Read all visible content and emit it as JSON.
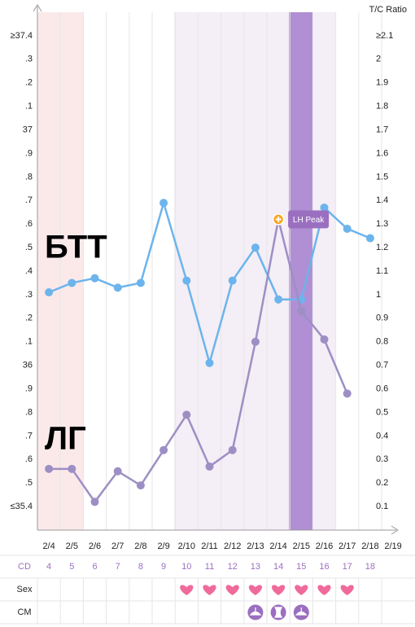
{
  "chart_data": {
    "type": "line",
    "categories": [
      "2/4",
      "2/5",
      "2/6",
      "2/7",
      "2/8",
      "2/9",
      "2/10",
      "2/11",
      "2/12",
      "2/13",
      "2/14",
      "2/15",
      "2/16",
      "2/17",
      "2/18",
      "2/19"
    ],
    "series": [
      {
        "name": "БТТ",
        "color": "#6cb4ec",
        "values": [
          36.31,
          36.35,
          36.37,
          36.33,
          36.35,
          36.69,
          36.36,
          36.01,
          36.36,
          36.5,
          36.28,
          36.28,
          36.67,
          36.58,
          36.54,
          null
        ]
      },
      {
        "name": "ЛГ",
        "color": "#9d8fc4",
        "axis": "y2",
        "values": [
          0.26,
          0.26,
          0.12,
          0.25,
          0.19,
          0.34,
          0.49,
          0.27,
          0.34,
          0.8,
          1.32,
          0.93,
          0.81,
          0.58,
          null,
          null
        ]
      }
    ],
    "ylim": [
      35.3,
      37.5
    ],
    "yticks": [
      {
        "value": 37.4,
        "label": "≥37.4"
      },
      {
        "value": 37.3,
        "label": ".3"
      },
      {
        "value": 37.2,
        "label": ".2"
      },
      {
        "value": 37.1,
        "label": ".1"
      },
      37,
      {
        "value": 36.9,
        "label": ".9"
      },
      {
        "value": 36.8,
        "label": ".8"
      },
      {
        "value": 36.7,
        "label": ".7"
      },
      {
        "value": 36.6,
        "label": ".6"
      },
      {
        "value": 36.5,
        "label": ".5"
      },
      {
        "value": 36.4,
        "label": ".4"
      },
      {
        "value": 36.3,
        "label": ".3"
      },
      {
        "value": 36.2,
        "label": ".2"
      },
      {
        "value": 36.1,
        "label": ".1"
      },
      36,
      {
        "value": 35.9,
        "label": ".9"
      },
      {
        "value": 35.8,
        "label": ".8"
      },
      {
        "value": 35.7,
        "label": ".7"
      },
      {
        "value": 35.6,
        "label": ".6"
      },
      {
        "value": 35.5,
        "label": ".5"
      },
      {
        "value": 35.4,
        "label": "≤35.4"
      }
    ],
    "y2label": "T/C Ratio",
    "y2lim": [
      0,
      2.2
    ],
    "y2ticks": [
      {
        "value": 2.1,
        "label": "≥2.1"
      },
      2,
      1.9,
      1.8,
      1.7,
      1.6,
      1.5,
      1.4,
      1.3,
      1.2,
      1.1,
      1,
      0.9,
      0.8,
      0.7,
      0.6,
      0.5,
      0.4,
      0.3,
      0.2,
      0.1
    ],
    "annotation": {
      "text": "LH Peak",
      "category": "2/14"
    }
  },
  "table": {
    "cd_label": "CD",
    "cd": [
      4,
      5,
      6,
      7,
      8,
      9,
      10,
      11,
      12,
      13,
      14,
      15,
      16,
      17,
      18
    ],
    "rows": [
      "Sex",
      "CM"
    ]
  }
}
